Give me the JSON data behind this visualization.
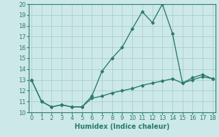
{
  "xlabel": "Humidex (Indice chaleur)",
  "line1_x": [
    0,
    1,
    2,
    3,
    4,
    5,
    6,
    7,
    8,
    9,
    10,
    11,
    12,
    13,
    14,
    15,
    16,
    17,
    18
  ],
  "line1_y": [
    13,
    11,
    10.5,
    10.7,
    10.5,
    10.5,
    11.5,
    13.8,
    15,
    16,
    17.7,
    19.3,
    18.3,
    20,
    17.3,
    12.7,
    13.2,
    13.5,
    13.1
  ],
  "line2_x": [
    0,
    1,
    2,
    3,
    4,
    5,
    6,
    7,
    8,
    9,
    10,
    11,
    12,
    13,
    14,
    15,
    16,
    17,
    18
  ],
  "line2_y": [
    13,
    11,
    10.5,
    10.7,
    10.5,
    10.5,
    11.3,
    11.5,
    11.8,
    12.0,
    12.2,
    12.5,
    12.7,
    12.9,
    13.1,
    12.7,
    13.0,
    13.3,
    13.1
  ],
  "line_color": "#2a7a6a",
  "bg_color": "#cce8e8",
  "grid_color": "#aacece",
  "ylim": [
    10,
    20
  ],
  "xlim": [
    -0.3,
    18.3
  ],
  "yticks": [
    10,
    11,
    12,
    13,
    14,
    15,
    16,
    17,
    18,
    19,
    20
  ],
  "xticks": [
    0,
    1,
    2,
    3,
    4,
    5,
    6,
    7,
    8,
    9,
    10,
    11,
    12,
    13,
    14,
    15,
    16,
    17,
    18
  ],
  "marker": "D",
  "markersize": 2.5,
  "linewidth": 1.0,
  "tick_fontsize": 6,
  "xlabel_fontsize": 7
}
